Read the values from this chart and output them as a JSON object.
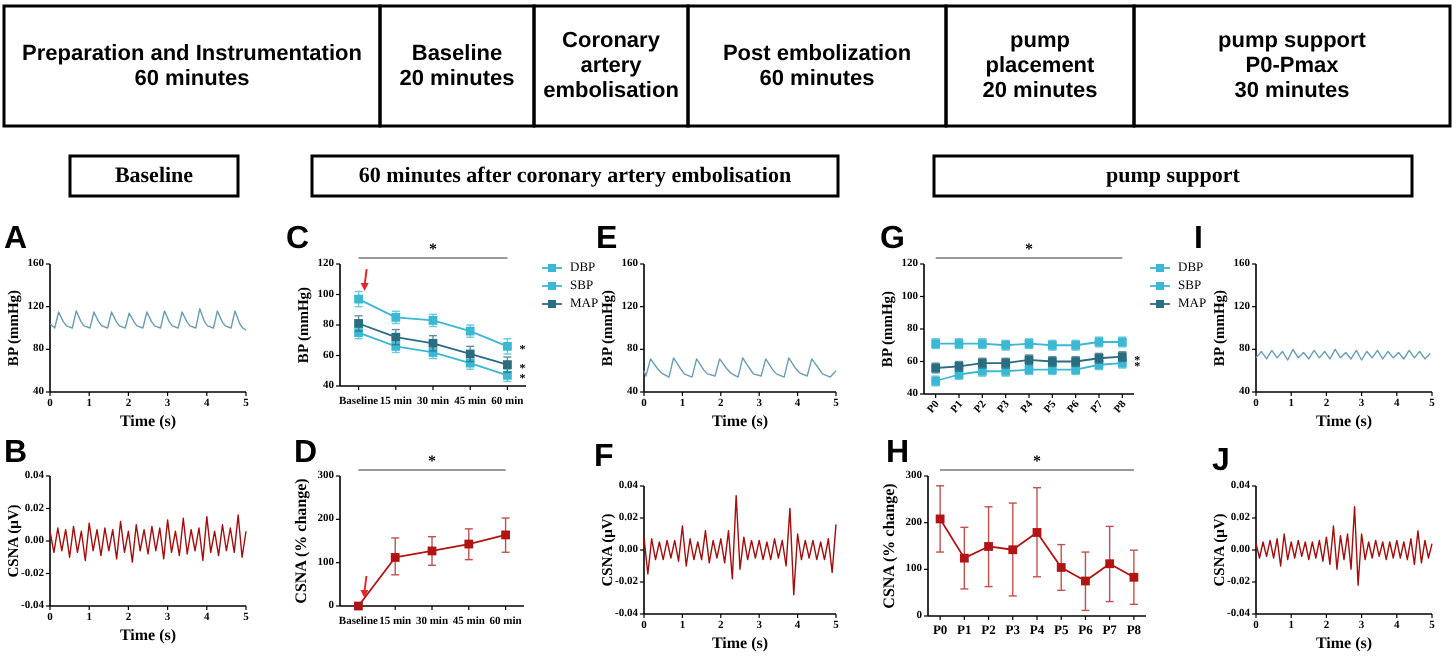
{
  "chart_data": [
    {
      "type": "other",
      "annotations": [
        "Preparation and Instrumentation\n60 minutes",
        "Baseline\n20 minutes",
        "Coronary\nartery\nembolisation",
        "Post embolization\n60 minutes",
        "pump\nplacement\n20 minutes",
        "pump support\nP0-Pmax\n30 minutes"
      ]
    },
    {
      "type": "other",
      "annotations": [
        "Baseline",
        "60 minutes after coronary artery embolisation",
        "pump support"
      ]
    },
    {
      "type": "line",
      "title": "A",
      "xlabel": "Time (s)",
      "ylabel": "BP (mmHg)",
      "xlim": [
        0,
        5
      ],
      "xticks": [
        0,
        1,
        2,
        3,
        4,
        5
      ],
      "ylim": [
        40,
        160
      ],
      "yticks": [
        40,
        80,
        120,
        160
      ],
      "color": "#6b9db3",
      "x": [
        0,
        0.12,
        0.22,
        0.34,
        0.42,
        0.57,
        0.67,
        0.79,
        0.87,
        1.02,
        1.12,
        1.24,
        1.32,
        1.47,
        1.57,
        1.69,
        1.77,
        1.92,
        2.02,
        2.14,
        2.22,
        2.37,
        2.47,
        2.59,
        2.67,
        2.82,
        2.92,
        3.04,
        3.12,
        3.27,
        3.37,
        3.49,
        3.57,
        3.72,
        3.82,
        3.94,
        4.02,
        4.17,
        4.27,
        4.39,
        4.47,
        4.62,
        4.72,
        4.84,
        4.92,
        5.0
      ],
      "values": [
        104,
        100,
        115,
        106,
        102,
        100,
        116,
        106,
        102,
        100,
        115,
        106,
        102,
        100,
        115,
        106,
        102,
        100,
        114,
        106,
        102,
        100,
        115,
        106,
        102,
        100,
        116,
        106,
        102,
        100,
        115,
        106,
        102,
        100,
        118,
        106,
        102,
        100,
        116,
        106,
        102,
        100,
        116,
        104,
        100,
        98
      ]
    },
    {
      "type": "line",
      "title": "C",
      "ylabel": "BP (mmHg)",
      "categories": [
        "Baseline",
        "15 min",
        "30 min",
        "45 min",
        "60 min"
      ],
      "ylim": [
        40,
        120
      ],
      "yticks": [
        40,
        60,
        80,
        100,
        120
      ],
      "marker": "square",
      "legend": "top right",
      "series": [
        {
          "name": "DBP",
          "color": "#3bb8d4",
          "values": [
            75,
            66,
            62,
            55,
            47
          ],
          "errors": [
            4,
            4,
            4,
            4,
            4
          ]
        },
        {
          "name": "SBP",
          "color": "#3bb8d4",
          "values": [
            97,
            85,
            83,
            76,
            66
          ],
          "errors": [
            5,
            4,
            4,
            4,
            5
          ]
        },
        {
          "name": "MAP",
          "color": "#2a6c80",
          "values": [
            81,
            72,
            68,
            61,
            54
          ],
          "errors": [
            5,
            5,
            5,
            5,
            5
          ]
        }
      ],
      "annotations": [
        "*",
        {
          "text": "*",
          "x": "60 min",
          "y": 66
        },
        {
          "text": "*",
          "x": "60 min",
          "y": 54
        },
        {
          "text": "*",
          "x": "60 min",
          "y": 47
        }
      ]
    },
    {
      "type": "line",
      "title": "E",
      "xlabel": "Time (s)",
      "ylabel": "BP (mmHg)",
      "xlim": [
        0,
        5
      ],
      "xticks": [
        0,
        1,
        2,
        3,
        4,
        5
      ],
      "ylim": [
        40,
        160
      ],
      "yticks": [
        40,
        80,
        120,
        160
      ],
      "color": "#6b9db3",
      "x": [
        0,
        0.05,
        0.17,
        0.35,
        0.45,
        0.65,
        0.77,
        0.95,
        1.05,
        1.25,
        1.37,
        1.55,
        1.65,
        1.85,
        1.97,
        2.15,
        2.25,
        2.45,
        2.57,
        2.75,
        2.85,
        3.05,
        3.17,
        3.35,
        3.45,
        3.65,
        3.77,
        3.95,
        4.05,
        4.25,
        4.37,
        4.55,
        4.65,
        4.85,
        5.0
      ],
      "values": [
        60,
        55,
        71,
        62,
        58,
        54,
        72,
        62,
        57,
        54,
        71,
        61,
        57,
        55,
        71,
        62,
        58,
        54,
        72,
        62,
        57,
        55,
        71,
        61,
        57,
        54,
        72,
        62,
        58,
        55,
        71,
        62,
        57,
        54,
        60
      ]
    },
    {
      "type": "line",
      "title": "G",
      "ylabel": "BP (mmHg)",
      "categories": [
        "P0",
        "P1",
        "P2",
        "P3",
        "P4",
        "P5",
        "P6",
        "P7",
        "P8"
      ],
      "ylim": [
        40,
        120
      ],
      "yticks": [
        40,
        60,
        80,
        100,
        120
      ],
      "marker": "square",
      "legend": "top right",
      "series": [
        {
          "name": "DBP",
          "color": "#3bb8d4",
          "values": [
            48,
            52,
            54,
            54,
            55,
            55,
            55,
            58,
            59
          ],
          "errors": [
            3,
            3,
            3,
            3,
            3,
            3,
            3,
            3,
            3
          ]
        },
        {
          "name": "SBP",
          "color": "#3bb8d4",
          "values": [
            71,
            71,
            71,
            70,
            71,
            70,
            70,
            72,
            72
          ],
          "errors": [
            3,
            3,
            3,
            3,
            3,
            3,
            3,
            3,
            3
          ]
        },
        {
          "name": "MAP",
          "color": "#2a6c80",
          "values": [
            56,
            57,
            59,
            59,
            61,
            60,
            60,
            62,
            63
          ],
          "errors": [
            3,
            3,
            3,
            3,
            3,
            3,
            3,
            3,
            3
          ]
        }
      ],
      "annotations": [
        "*",
        {
          "text": "*",
          "x": "P8",
          "y": 63
        },
        {
          "text": "*",
          "x": "P8",
          "y": 59
        }
      ]
    },
    {
      "type": "line",
      "title": "I",
      "xlabel": "Time (s)",
      "ylabel": "BP (mmHg)",
      "xlim": [
        0,
        5
      ],
      "xticks": [
        0,
        1,
        2,
        3,
        4,
        5
      ],
      "ylim": [
        40,
        160
      ],
      "yticks": [
        40,
        80,
        120,
        160
      ],
      "color": "#6b9db3",
      "x": [
        0,
        0.15,
        0.3,
        0.45,
        0.6,
        0.75,
        0.9,
        1.05,
        1.2,
        1.35,
        1.5,
        1.65,
        1.8,
        1.95,
        2.1,
        2.25,
        2.4,
        2.55,
        2.7,
        2.85,
        3.0,
        3.15,
        3.3,
        3.45,
        3.6,
        3.75,
        3.9,
        4.05,
        4.2,
        4.35,
        4.5,
        4.65,
        4.8,
        4.95
      ],
      "values": [
        72,
        78,
        71,
        79,
        72,
        78,
        70,
        80,
        72,
        77,
        71,
        79,
        72,
        78,
        71,
        80,
        72,
        77,
        71,
        79,
        70,
        78,
        72,
        79,
        71,
        78,
        72,
        77,
        71,
        79,
        72,
        78,
        71,
        76
      ]
    },
    {
      "type": "line",
      "title": "B",
      "xlabel": "Time (s)",
      "ylabel": "CSNA (μV)",
      "xlim": [
        0,
        5
      ],
      "xticks": [
        0,
        1,
        2,
        3,
        4,
        5
      ],
      "ylim": [
        -0.04,
        0.04
      ],
      "yticks": [
        {
          "value": -0.04,
          "label": "-0.04"
        },
        {
          "value": -0.02,
          "label": "-0.02"
        },
        {
          "value": 0,
          "label": "0.00"
        },
        {
          "value": 0.02,
          "label": "0.02"
        },
        {
          "value": 0.04,
          "label": "0.04"
        }
      ],
      "color": "#a30d0d",
      "x": [
        0,
        0.1,
        0.2,
        0.3,
        0.4,
        0.5,
        0.6,
        0.7,
        0.8,
        0.9,
        1.0,
        1.1,
        1.2,
        1.3,
        1.4,
        1.5,
        1.6,
        1.7,
        1.8,
        1.9,
        2.0,
        2.1,
        2.2,
        2.3,
        2.4,
        2.5,
        2.6,
        2.7,
        2.8,
        2.9,
        3.0,
        3.1,
        3.2,
        3.3,
        3.4,
        3.5,
        3.6,
        3.7,
        3.8,
        3.9,
        4.0,
        4.1,
        4.2,
        4.3,
        4.4,
        4.5,
        4.6,
        4.7,
        4.8,
        4.9,
        5.0
      ],
      "values": [
        0.006,
        -0.007,
        0.008,
        -0.006,
        0.007,
        -0.01,
        0.009,
        -0.007,
        0.006,
        -0.012,
        0.011,
        -0.006,
        0.007,
        -0.009,
        0.008,
        -0.006,
        0.007,
        -0.011,
        0.012,
        -0.007,
        0.006,
        -0.013,
        0.01,
        -0.006,
        0.007,
        -0.008,
        0.009,
        -0.006,
        0.008,
        -0.011,
        0.013,
        -0.007,
        0.006,
        -0.009,
        0.014,
        -0.008,
        0.007,
        -0.006,
        0.008,
        -0.012,
        0.015,
        -0.007,
        0.006,
        -0.009,
        0.01,
        -0.006,
        0.008,
        -0.007,
        0.016,
        -0.01,
        0.006
      ]
    },
    {
      "type": "line",
      "title": "D",
      "ylabel": "CSNA (% change)",
      "categories": [
        "Baseline",
        "15 min",
        "30 min",
        "45 min",
        "60 min"
      ],
      "ylim": [
        0,
        300
      ],
      "yticks": [
        0,
        100,
        200,
        300
      ],
      "marker": "square",
      "color": "#b01414",
      "values": [
        0,
        112,
        127,
        143,
        164
      ],
      "errors": [
        null,
        [
          72,
          157
        ],
        [
          94,
          160
        ],
        [
          107,
          178
        ],
        [
          124,
          203
        ]
      ],
      "annotations": [
        "*"
      ]
    },
    {
      "type": "line",
      "title": "F",
      "xlabel": "Time (s)",
      "ylabel": "CSNA (μV)",
      "xlim": [
        0,
        5
      ],
      "xticks": [
        0,
        1,
        2,
        3,
        4,
        5
      ],
      "ylim": [
        -0.04,
        0.04
      ],
      "yticks": [
        {
          "value": -0.04,
          "label": "-0.04"
        },
        {
          "value": -0.02,
          "label": "-0.02"
        },
        {
          "value": 0,
          "label": "0.00"
        },
        {
          "value": 0.02,
          "label": "0.02"
        },
        {
          "value": 0.04,
          "label": "0.04"
        }
      ],
      "color": "#a30d0d",
      "x": [
        0,
        0.1,
        0.2,
        0.3,
        0.4,
        0.5,
        0.6,
        0.7,
        0.8,
        0.9,
        1.0,
        1.1,
        1.2,
        1.3,
        1.4,
        1.5,
        1.6,
        1.7,
        1.8,
        1.9,
        2.0,
        2.1,
        2.2,
        2.3,
        2.4,
        2.5,
        2.6,
        2.7,
        2.8,
        2.9,
        3.0,
        3.1,
        3.2,
        3.3,
        3.4,
        3.5,
        3.6,
        3.7,
        3.8,
        3.9,
        4.0,
        4.1,
        4.2,
        4.3,
        4.4,
        4.5,
        4.6,
        4.7,
        4.8,
        4.9,
        5.0
      ],
      "values": [
        0.008,
        -0.015,
        0.007,
        -0.006,
        0.005,
        -0.006,
        0.006,
        -0.005,
        0.006,
        -0.007,
        0.015,
        -0.01,
        0.007,
        -0.006,
        0.005,
        -0.006,
        0.012,
        -0.008,
        0.006,
        -0.005,
        0.007,
        -0.008,
        0.012,
        -0.018,
        0.034,
        -0.012,
        0.008,
        -0.006,
        0.006,
        -0.005,
        0.006,
        -0.006,
        0.005,
        -0.006,
        0.007,
        -0.005,
        0.006,
        -0.01,
        0.026,
        -0.028,
        0.01,
        -0.006,
        0.006,
        -0.005,
        0.006,
        -0.006,
        0.005,
        -0.006,
        0.007,
        -0.014,
        0.016
      ]
    },
    {
      "type": "line",
      "title": "H",
      "ylabel": "CSNA (% change)",
      "categories": [
        "P0",
        "P1",
        "P2",
        "P3",
        "P4",
        "P5",
        "P6",
        "P7",
        "P8"
      ],
      "ylim": [
        0,
        300
      ],
      "yticks": [
        0,
        100,
        200,
        300
      ],
      "marker": "square",
      "color": "#b01414",
      "values": [
        208,
        124,
        149,
        142,
        179,
        104,
        75,
        112,
        83
      ],
      "errors": [
        [
          137,
          279
        ],
        [
          58,
          190
        ],
        [
          63,
          234
        ],
        [
          43,
          242
        ],
        [
          84,
          275
        ],
        [
          55,
          153
        ],
        [
          12,
          137
        ],
        [
          31,
          192
        ],
        [
          25,
          141
        ]
      ],
      "annotations": [
        "*"
      ]
    },
    {
      "type": "line",
      "title": "J",
      "xlabel": "Time (s)",
      "ylabel": "CSNA (μV)",
      "xlim": [
        0,
        5
      ],
      "xticks": [
        0,
        1,
        2,
        3,
        4,
        5
      ],
      "ylim": [
        -0.04,
        0.04
      ],
      "yticks": [
        {
          "value": -0.04,
          "label": "-0.04"
        },
        {
          "value": -0.02,
          "label": "-0.02"
        },
        {
          "value": 0,
          "label": "0.00"
        },
        {
          "value": 0.02,
          "label": "0.02"
        },
        {
          "value": 0.04,
          "label": "0.04"
        }
      ],
      "color": "#a30d0d",
      "x": [
        0,
        0.1,
        0.2,
        0.3,
        0.4,
        0.5,
        0.6,
        0.7,
        0.8,
        0.9,
        1.0,
        1.1,
        1.2,
        1.3,
        1.4,
        1.5,
        1.6,
        1.7,
        1.8,
        1.9,
        2.0,
        2.1,
        2.2,
        2.3,
        2.4,
        2.5,
        2.6,
        2.7,
        2.8,
        2.9,
        3.0,
        3.1,
        3.2,
        3.3,
        3.4,
        3.5,
        3.6,
        3.7,
        3.8,
        3.9,
        4.0,
        4.1,
        4.2,
        4.3,
        4.4,
        4.5,
        4.6,
        4.7,
        4.8,
        4.9,
        5.0
      ],
      "values": [
        0.004,
        -0.005,
        0.005,
        -0.004,
        0.006,
        -0.005,
        0.007,
        -0.01,
        0.01,
        -0.006,
        0.005,
        -0.005,
        0.006,
        -0.004,
        0.005,
        -0.006,
        0.005,
        -0.005,
        0.006,
        -0.007,
        0.008,
        -0.009,
        0.015,
        -0.012,
        0.009,
        -0.006,
        0.01,
        -0.012,
        0.027,
        -0.022,
        0.01,
        -0.006,
        0.005,
        -0.005,
        0.006,
        -0.004,
        0.005,
        -0.006,
        0.005,
        -0.005,
        0.006,
        -0.005,
        0.005,
        -0.006,
        0.007,
        -0.009,
        0.012,
        -0.008,
        0.006,
        -0.005,
        0.004
      ]
    }
  ]
}
